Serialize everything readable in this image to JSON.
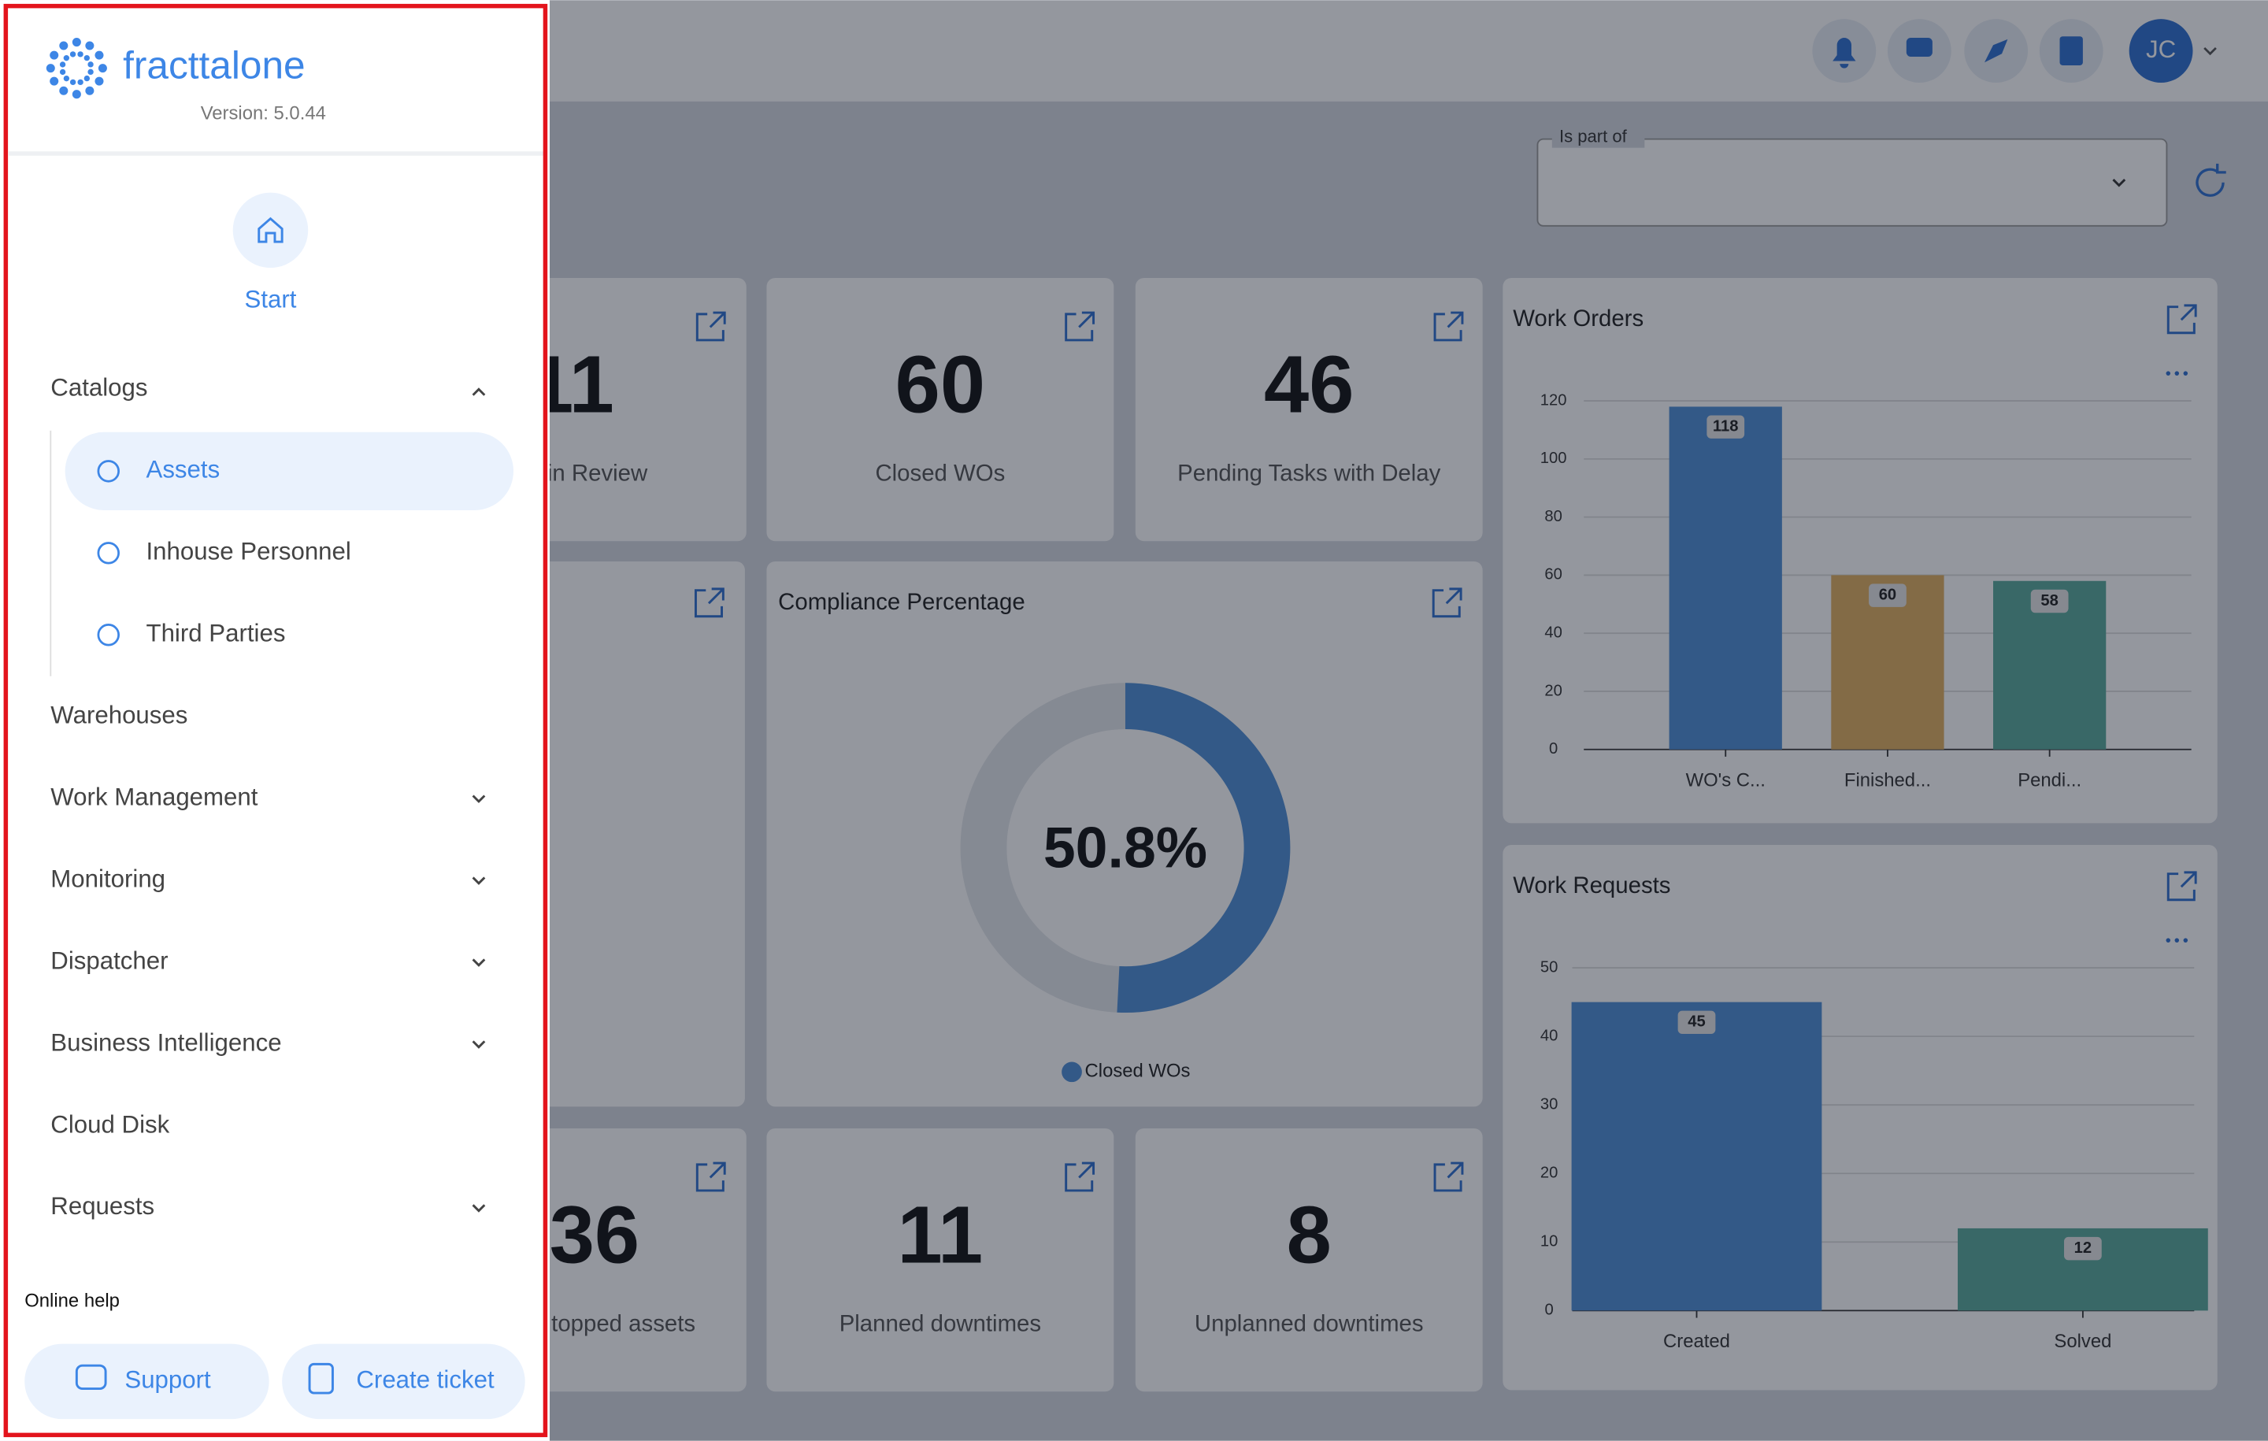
{
  "sidebar": {
    "logo": "fracttalone",
    "version": "Version: 5.0.44",
    "start": "Start",
    "menu": [
      {
        "label": "Catalogs",
        "expandable": true,
        "expanded": true,
        "children": [
          {
            "label": "Assets",
            "active": true
          },
          {
            "label": "Inhouse Personnel"
          },
          {
            "label": "Third Parties"
          }
        ]
      },
      {
        "label": "Warehouses"
      },
      {
        "label": "Work Management",
        "expandable": true
      },
      {
        "label": "Monitoring",
        "expandable": true
      },
      {
        "label": "Dispatcher",
        "expandable": true
      },
      {
        "label": "Business Intelligence",
        "expandable": true
      },
      {
        "label": "Cloud Disk"
      },
      {
        "label": "Requests",
        "expandable": true
      }
    ],
    "online_help": "Online help",
    "support": "Support",
    "create_ticket": "Create ticket"
  },
  "header": {
    "user_initials": "JC"
  },
  "filter": {
    "label": "Is part of"
  },
  "kpis": [
    {
      "value": 11,
      "label": "in Review"
    },
    {
      "value": 60,
      "label": "Closed WOs"
    },
    {
      "value": 46,
      "label": "Pending Tasks with Delay"
    },
    {
      "value": 36,
      "label": "topped assets"
    },
    {
      "value": 11,
      "label": "Planned downtimes"
    },
    {
      "value": 8,
      "label": "Unplanned downtimes"
    }
  ],
  "chart_data": [
    {
      "type": "bar",
      "title": "Work Orders",
      "categories": [
        "WO's C...",
        "Finished...",
        "Pendi..."
      ],
      "values": [
        118,
        60,
        58
      ],
      "colors": [
        "#4f8fd6",
        "#e0b060",
        "#5aaa9c"
      ],
      "ylim": [
        0,
        120
      ],
      "yticks": [
        0,
        20,
        40,
        60,
        80,
        100,
        120
      ],
      "grid": true
    },
    {
      "type": "bar",
      "title": "Work Requests",
      "categories": [
        "Created",
        "Solved"
      ],
      "values": [
        45,
        12
      ],
      "colors": [
        "#4f8fd6",
        "#5aaa9c"
      ],
      "ylim": [
        0,
        50
      ],
      "yticks": [
        0,
        10,
        20,
        30,
        40,
        50
      ],
      "grid": true
    },
    {
      "type": "donut",
      "title": "Compliance Percentage",
      "categories": [
        "Closed WOs"
      ],
      "values": [
        50.8
      ],
      "value_labels": [
        "50.8%"
      ],
      "color": "#4f8fd6",
      "track_color": "#e4e7eb"
    }
  ]
}
